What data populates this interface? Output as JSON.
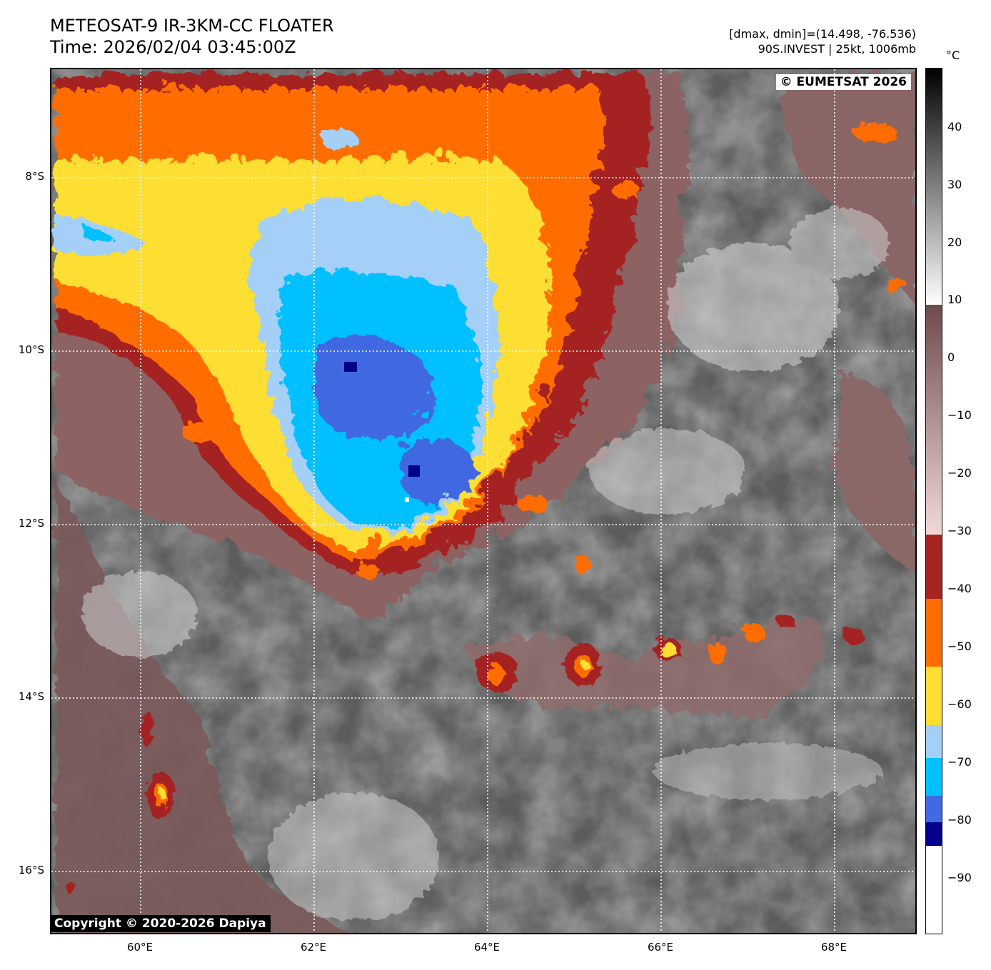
{
  "header": {
    "title_line1": "METEOSAT-9 IR-3KM-CC FLOATER",
    "title_line2": "Time: 2026/02/04 03:45:00Z",
    "range_text": "[dmax, dmin]=(14.498, -76.536)",
    "storm_text": "90S.INVEST | 25kt, 1006mb"
  },
  "map": {
    "copyright_top": "© EUMETSAT 2026",
    "copyright_bottom": "Copyright © 2020-2026 Dapiya",
    "lat_labels": [
      "8°S",
      "10°S",
      "12°S",
      "14°S",
      "16°S"
    ],
    "lon_labels": [
      "60°E",
      "62°E",
      "64°E",
      "66°E",
      "68°E"
    ]
  },
  "colorbar": {
    "unit": "°C",
    "tick_values": [
      "40",
      "30",
      "20",
      "10",
      "0",
      "−10",
      "−20",
      "−30",
      "−40",
      "−50",
      "−60",
      "−70",
      "−80",
      "−90"
    ],
    "range": [
      -100,
      50
    ],
    "colors": {
      "warm_top": "#000000",
      "gray": "#808080",
      "light": "#ffffff",
      "brown_dark": "#6e4b4b",
      "brown_light": "#f1d8d8",
      "dark_red": "#a52422",
      "orange": "#ff6d00",
      "yellow": "#fdde32",
      "light_blue": "#a4cff7",
      "cyan": "#00c0ff",
      "royal_blue": "#4169e1",
      "navy": "#00008b",
      "coldest": "#ffffff"
    }
  },
  "colors": {
    "background_gray": "#5e5e5e",
    "storm_center_navy": "#1a1a8c"
  }
}
